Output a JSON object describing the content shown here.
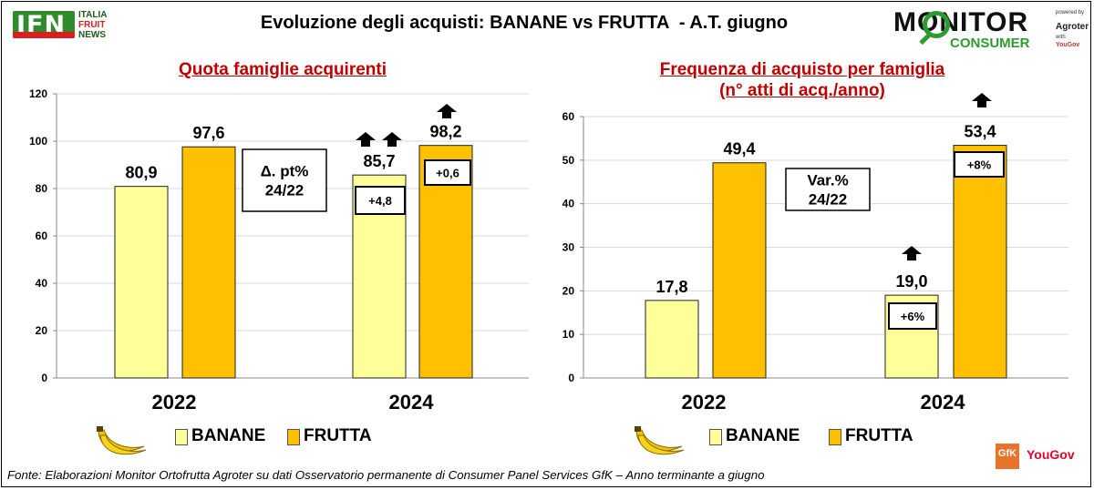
{
  "header": {
    "title": "Evoluzione degli acquisti: BANANE vs FRUTTA  - A.T. giugno"
  },
  "logos": {
    "ifn_letters": "IFN",
    "ifn_words": [
      "ITALIA",
      "FRUIT",
      "NEWS"
    ],
    "monitor": "MONITOR",
    "consumer": "CONSUMER",
    "powered_by": "powered by",
    "agroter": "Agroter",
    "with": "with",
    "yougov_small": "YouGov",
    "gfk": "GfK",
    "yougov": "YouGov"
  },
  "colors": {
    "banane": "#ffff99",
    "frutta": "#ffc000",
    "title_red": "#c00000",
    "grid": "#d9d9d9"
  },
  "legend": {
    "banane": "BANANE",
    "frutta": "FRUTTA"
  },
  "source": "Fonte: Elaborazioni Monitor Ortofrutta Agroter su dati Osservatorio permanente di Consumer Panel Services GfK  – Anno terminante a giugno",
  "chart_data": [
    {
      "type": "bar",
      "title": "Quota famiglie acquirenti",
      "categories": [
        "2022",
        "2024"
      ],
      "series": [
        {
          "name": "BANANE",
          "values": [
            80.9,
            85.7
          ],
          "labels": [
            "80,9",
            "85,7"
          ],
          "color": "#ffff99"
        },
        {
          "name": "FRUTTA",
          "values": [
            97.6,
            98.2
          ],
          "labels": [
            "97,6",
            "98,2"
          ],
          "color": "#ffc000"
        }
      ],
      "ylim": [
        0,
        120
      ],
      "yticks": [
        0,
        20,
        40,
        60,
        80,
        100,
        120
      ],
      "grid": true,
      "note": [
        "Δ. pt%",
        "24/22"
      ],
      "changes": [
        {
          "series": "BANANE",
          "label": "+4,8",
          "arrows": 2
        },
        {
          "series": "FRUTTA",
          "label": "+0,6",
          "arrows": 1
        }
      ]
    },
    {
      "type": "bar",
      "title": "Frequenza di acquisto per famiglia\n(n° atti di acq./anno)",
      "categories": [
        "2022",
        "2024"
      ],
      "series": [
        {
          "name": "BANANE",
          "values": [
            17.8,
            19.0
          ],
          "labels": [
            "17,8",
            "19,0"
          ],
          "color": "#ffff99"
        },
        {
          "name": "FRUTTA",
          "values": [
            49.4,
            53.4
          ],
          "labels": [
            "49,4",
            "53,4"
          ],
          "color": "#ffc000"
        }
      ],
      "ylim": [
        0,
        60
      ],
      "yticks": [
        0,
        10,
        20,
        30,
        40,
        50,
        60
      ],
      "grid": true,
      "note": [
        "Var.%",
        "24/22"
      ],
      "changes": [
        {
          "series": "BANANE",
          "label": "+6%",
          "arrows": 1
        },
        {
          "series": "FRUTTA",
          "label": "+8%",
          "arrows": 1
        }
      ]
    }
  ]
}
